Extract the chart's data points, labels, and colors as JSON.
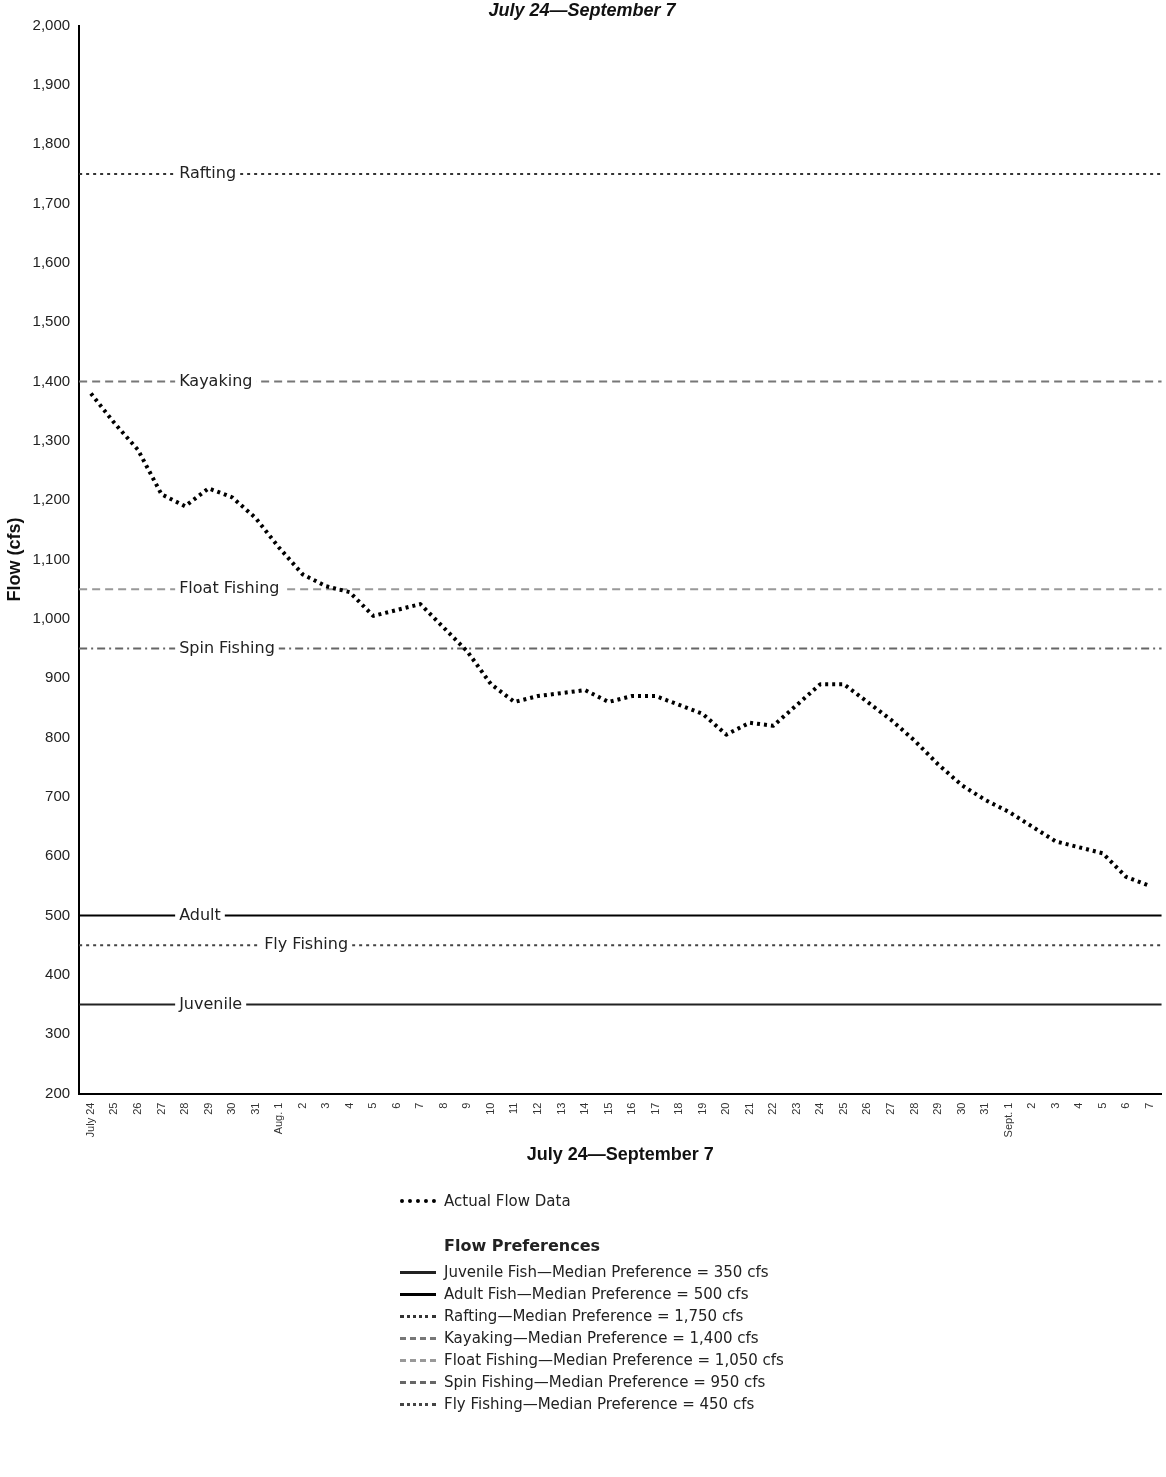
{
  "chart_data": {
    "type": "line",
    "title": "July 24—September 7",
    "xlabel": "July 24—September 7",
    "ylabel": "Flow (cfs)",
    "categories": [
      "July 24",
      "25",
      "26",
      "27",
      "28",
      "29",
      "30",
      "31",
      "Aug. 1",
      "2",
      "3",
      "4",
      "5",
      "6",
      "7",
      "8",
      "9",
      "10",
      "11",
      "12",
      "13",
      "14",
      "15",
      "16",
      "17",
      "18",
      "19",
      "20",
      "21",
      "22",
      "23",
      "24",
      "25",
      "26",
      "27",
      "28",
      "29",
      "30",
      "31",
      "Sept. 1",
      "2",
      "3",
      "4",
      "5",
      "6",
      "7"
    ],
    "series": [
      {
        "name": "Actual Flow Data",
        "color": "#000000",
        "line_style": "dotted",
        "values": [
          1380,
          1330,
          1285,
          1210,
          1190,
          1220,
          1205,
          1170,
          1120,
          1075,
          1055,
          1045,
          1005,
          1015,
          1025,
          985,
          945,
          890,
          860,
          870,
          875,
          880,
          860,
          870,
          870,
          855,
          840,
          805,
          825,
          820,
          855,
          890,
          890,
          860,
          830,
          795,
          755,
          720,
          695,
          675,
          650,
          625,
          615,
          605,
          565,
          550
        ]
      }
    ],
    "ylim": [
      200,
      2000
    ],
    "yticks": [
      200,
      300,
      400,
      500,
      600,
      700,
      800,
      900,
      {
        "value": 1000,
        "label": "1,000"
      },
      {
        "value": 1100,
        "label": "1,100"
      },
      {
        "value": 1200,
        "label": "1,200"
      },
      {
        "value": 1300,
        "label": "1,300"
      },
      {
        "value": 1400,
        "label": "1,400"
      },
      {
        "value": 1500,
        "label": "1,500"
      },
      {
        "value": 1600,
        "label": "1,600"
      },
      {
        "value": 1700,
        "label": "1,700"
      },
      {
        "value": 1800,
        "label": "1,800"
      },
      {
        "value": 1900,
        "label": "1,900"
      },
      {
        "value": 2000,
        "label": "2,000"
      }
    ],
    "grid": false,
    "legend": "bottom",
    "marker": "none",
    "legend_title": "Flow Preferences",
    "ref_lines": [
      {
        "axis": "y",
        "value": 350,
        "label": "Juvenile",
        "color": "#222222",
        "line_style": "solid"
      },
      {
        "axis": "y",
        "value": 500,
        "label": "Adult",
        "color": "#000000",
        "line_style": "solid"
      },
      {
        "axis": "y",
        "value": 1750,
        "label": "Rafting",
        "color": "#333333",
        "line_style": "dotted"
      },
      {
        "axis": "y",
        "value": 1400,
        "label": "Kayaking",
        "color": "#777777",
        "line_style": "dashed"
      },
      {
        "axis": "y",
        "value": 1050,
        "label": "Float Fishing",
        "color": "#999999",
        "line_style": "dashed"
      },
      {
        "axis": "y",
        "value": 950,
        "label": "Spin Fishing",
        "color": "#666666",
        "line_style": "dashdot"
      },
      {
        "axis": "y",
        "value": 450,
        "label": "Fly Fishing",
        "color": "#444444",
        "line_style": "dotted"
      }
    ],
    "annotations": [
      "Juvenile Fish—Median Preference = 350 cfs",
      "Adult Fish—Median Preference = 500 cfs",
      "Rafting—Median Preference = 1,750 cfs",
      "Kayaking—Median Preference = 1,400 cfs",
      "Float Fishing—Median Preference = 1,050 cfs",
      "Spin Fishing—Median Preference = 950 cfs",
      "Fly Fishing—Median Preference = 450 cfs"
    ]
  }
}
